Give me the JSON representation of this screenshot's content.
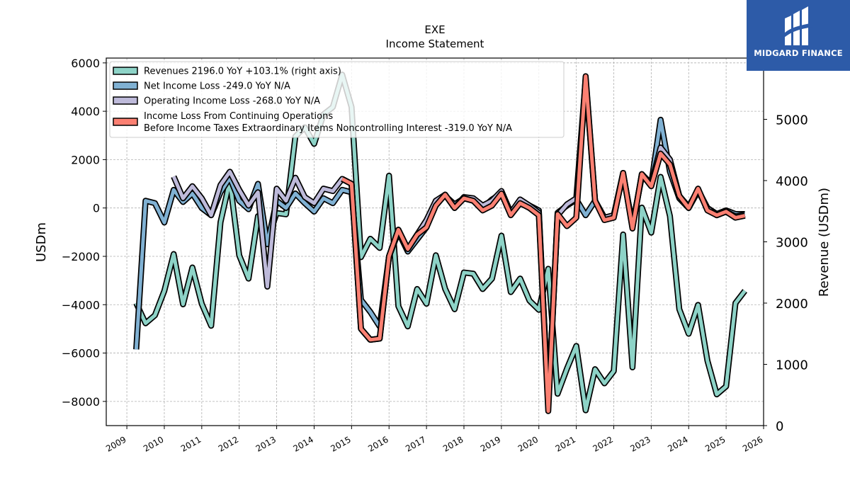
{
  "logo": {
    "text": "MIDGARD FINANCE",
    "mark": "midgard-logo-icon"
  },
  "chart_data": {
    "type": "line",
    "title": "EXE",
    "subtitle": "Income Statement",
    "ylabel": "USDm",
    "ylabel_right": "Revenue (USDm)",
    "ylim": [
      -9000,
      6200
    ],
    "ylim_right": [
      0,
      6000
    ],
    "yticks": [
      -8000,
      -6000,
      -4000,
      -2000,
      0,
      2000,
      4000,
      6000
    ],
    "yticks_right": [
      0,
      1000,
      2000,
      3000,
      4000,
      5000
    ],
    "xlim": [
      2008.45,
      2026.0
    ],
    "xticks": [
      2009,
      2010,
      2011,
      2012,
      2013,
      2014,
      2015,
      2016,
      2017,
      2018,
      2019,
      2020,
      2021,
      2022,
      2023,
      2024,
      2025,
      2026
    ],
    "grid": true,
    "legend_position": "top-left",
    "series": [
      {
        "name": "Revenues  2196.0 YoY +103.1% (right axis)",
        "axis": "right",
        "color": "#8dd3c7",
        "points": [
          [
            2009.25,
            2000
          ],
          [
            2009.5,
            1670
          ],
          [
            2009.75,
            1800
          ],
          [
            2010.0,
            2200
          ],
          [
            2010.25,
            2800
          ],
          [
            2010.5,
            1980
          ],
          [
            2010.75,
            2580
          ],
          [
            2011.0,
            1990
          ],
          [
            2011.25,
            1630
          ],
          [
            2011.5,
            3320
          ],
          [
            2011.75,
            4000
          ],
          [
            2012.0,
            2780
          ],
          [
            2012.25,
            2400
          ],
          [
            2012.5,
            3420
          ],
          [
            2012.75,
            3020
          ],
          [
            2013.0,
            3470
          ],
          [
            2013.25,
            3450
          ],
          [
            2013.5,
            4720
          ],
          [
            2013.75,
            4870
          ],
          [
            2014.0,
            4600
          ],
          [
            2014.25,
            5080
          ],
          [
            2014.5,
            5200
          ],
          [
            2014.75,
            5730
          ],
          [
            2015.0,
            5200
          ],
          [
            2015.25,
            2750
          ],
          [
            2015.5,
            3050
          ],
          [
            2015.75,
            2900
          ],
          [
            2016.0,
            4080
          ],
          [
            2016.25,
            1950
          ],
          [
            2016.5,
            1620
          ],
          [
            2016.75,
            2230
          ],
          [
            2017.0,
            1990
          ],
          [
            2017.25,
            2780
          ],
          [
            2017.5,
            2230
          ],
          [
            2017.75,
            1900
          ],
          [
            2018.0,
            2500
          ],
          [
            2018.25,
            2480
          ],
          [
            2018.5,
            2230
          ],
          [
            2018.75,
            2400
          ],
          [
            2019.0,
            3100
          ],
          [
            2019.25,
            2180
          ],
          [
            2019.5,
            2400
          ],
          [
            2019.75,
            2040
          ],
          [
            2020.0,
            1890
          ],
          [
            2020.25,
            2560
          ],
          [
            2020.5,
            520
          ],
          [
            2020.75,
            930
          ],
          [
            2021.0,
            1300
          ],
          [
            2021.25,
            250
          ],
          [
            2021.5,
            920
          ],
          [
            2021.75,
            690
          ],
          [
            2022.0,
            890
          ],
          [
            2022.25,
            3120
          ],
          [
            2022.5,
            950
          ],
          [
            2022.75,
            3560
          ],
          [
            2023.0,
            3150
          ],
          [
            2023.25,
            4060
          ],
          [
            2023.5,
            3420
          ],
          [
            2023.75,
            1900
          ],
          [
            2024.0,
            1500
          ],
          [
            2024.25,
            1970
          ],
          [
            2024.5,
            1060
          ],
          [
            2024.75,
            510
          ],
          [
            2025.0,
            640
          ],
          [
            2025.25,
            2000
          ],
          [
            2025.5,
            2200
          ]
        ]
      },
      {
        "name": "Net Income Loss  -249.0 YoY N/A",
        "axis": "left",
        "color": "#80b1d3",
        "points": [
          [
            2009.25,
            -5850
          ],
          [
            2009.5,
            300
          ],
          [
            2009.75,
            200
          ],
          [
            2010.0,
            -600
          ],
          [
            2010.25,
            750
          ],
          [
            2010.5,
            250
          ],
          [
            2010.75,
            600
          ],
          [
            2011.0,
            0
          ],
          [
            2011.25,
            -300
          ],
          [
            2011.5,
            650
          ],
          [
            2011.75,
            1250
          ],
          [
            2012.0,
            300
          ],
          [
            2012.25,
            -50
          ],
          [
            2012.5,
            1000
          ],
          [
            2012.75,
            -1500
          ],
          [
            2013.0,
            300
          ],
          [
            2013.25,
            0
          ],
          [
            2013.5,
            600
          ],
          [
            2013.75,
            200
          ],
          [
            2014.0,
            -150
          ],
          [
            2014.25,
            400
          ],
          [
            2014.5,
            200
          ],
          [
            2014.75,
            750
          ],
          [
            2015.0,
            650
          ],
          [
            2015.25,
            -3800
          ],
          [
            2015.5,
            -4300
          ],
          [
            2015.75,
            -4900
          ],
          [
            2016.0,
            -2000
          ],
          [
            2016.25,
            -1000
          ],
          [
            2016.5,
            -1800
          ],
          [
            2016.75,
            -1300
          ],
          [
            2017.0,
            -800
          ],
          [
            2017.25,
            300
          ],
          [
            2017.5,
            500
          ],
          [
            2017.75,
            150
          ],
          [
            2018.0,
            400
          ],
          [
            2018.25,
            300
          ],
          [
            2018.5,
            0
          ],
          [
            2018.75,
            350
          ],
          [
            2019.0,
            600
          ],
          [
            2019.25,
            -200
          ],
          [
            2019.5,
            300
          ],
          [
            2019.75,
            100
          ],
          [
            2020.0,
            -100
          ],
          [
            2020.25,
            -8200
          ],
          [
            2020.5,
            -200
          ],
          [
            2020.75,
            100
          ],
          [
            2021.0,
            350
          ],
          [
            2021.25,
            -300
          ],
          [
            2021.5,
            300
          ],
          [
            2021.75,
            -400
          ],
          [
            2022.0,
            -350
          ],
          [
            2022.25,
            1400
          ],
          [
            2022.5,
            -700
          ],
          [
            2022.75,
            1300
          ],
          [
            2023.0,
            1000
          ],
          [
            2023.25,
            3650
          ],
          [
            2023.5,
            1500
          ],
          [
            2023.75,
            400
          ],
          [
            2024.0,
            0
          ],
          [
            2024.25,
            700
          ],
          [
            2024.5,
            0
          ],
          [
            2024.75,
            -250
          ],
          [
            2025.0,
            -100
          ],
          [
            2025.25,
            -250
          ],
          [
            2025.5,
            -249
          ]
        ]
      },
      {
        "name": "Operating Income Loss  -268.0 YoY N/A",
        "axis": "left",
        "color": "#bebada",
        "points": [
          [
            2010.25,
            1300
          ],
          [
            2010.5,
            400
          ],
          [
            2010.75,
            900
          ],
          [
            2011.0,
            400
          ],
          [
            2011.25,
            -300
          ],
          [
            2011.5,
            950
          ],
          [
            2011.75,
            1500
          ],
          [
            2012.0,
            750
          ],
          [
            2012.25,
            100
          ],
          [
            2012.5,
            650
          ],
          [
            2012.75,
            -3250
          ],
          [
            2013.0,
            800
          ],
          [
            2013.25,
            300
          ],
          [
            2013.5,
            1250
          ],
          [
            2013.75,
            450
          ],
          [
            2014.0,
            200
          ],
          [
            2014.25,
            800
          ],
          [
            2014.5,
            700
          ],
          [
            2014.75,
            1200
          ],
          [
            2015.0,
            1000
          ],
          [
            2015.25,
            -5000
          ],
          [
            2015.5,
            -5450
          ],
          [
            2015.75,
            -5400
          ],
          [
            2016.0,
            -2000
          ],
          [
            2016.25,
            -900
          ],
          [
            2016.5,
            -1700
          ],
          [
            2016.75,
            -1100
          ],
          [
            2017.0,
            -500
          ],
          [
            2017.25,
            300
          ],
          [
            2017.5,
            550
          ],
          [
            2017.75,
            0
          ],
          [
            2018.0,
            450
          ],
          [
            2018.25,
            400
          ],
          [
            2018.5,
            100
          ],
          [
            2018.75,
            300
          ],
          [
            2019.0,
            700
          ],
          [
            2019.25,
            -200
          ],
          [
            2019.5,
            350
          ],
          [
            2019.75,
            100
          ],
          [
            2020.0,
            -200
          ],
          [
            2020.25,
            -8200
          ],
          [
            2020.5,
            -300
          ],
          [
            2020.75,
            150
          ],
          [
            2021.0,
            400
          ],
          [
            2021.25,
            5350
          ],
          [
            2021.5,
            300
          ],
          [
            2021.75,
            -400
          ],
          [
            2022.0,
            -300
          ],
          [
            2022.25,
            1450
          ],
          [
            2022.5,
            -800
          ],
          [
            2022.75,
            1400
          ],
          [
            2023.0,
            1000
          ],
          [
            2023.25,
            2500
          ],
          [
            2023.5,
            2000
          ],
          [
            2023.75,
            500
          ],
          [
            2024.0,
            50
          ],
          [
            2024.25,
            750
          ],
          [
            2024.5,
            0
          ],
          [
            2024.75,
            -300
          ],
          [
            2025.0,
            -150
          ],
          [
            2025.25,
            -350
          ],
          [
            2025.5,
            -268
          ]
        ]
      },
      {
        "name": "Income Loss From Continuing Operations Before Income Taxes Extraordinary Items Noncontrolling Interest  -319.0 YoY N/A",
        "name_line1": "Income Loss From Continuing Operations",
        "name_line2": "Before Income Taxes Extraordinary Items Noncontrolling Interest  -319.0 YoY N/A",
        "axis": "left",
        "color": "#fb8072",
        "points": [
          [
            2014.75,
            1200
          ],
          [
            2015.0,
            1000
          ],
          [
            2015.25,
            -5000
          ],
          [
            2015.5,
            -5450
          ],
          [
            2015.75,
            -5400
          ],
          [
            2016.0,
            -2000
          ],
          [
            2016.25,
            -900
          ],
          [
            2016.5,
            -1700
          ],
          [
            2016.75,
            -1100
          ],
          [
            2017.0,
            -800
          ],
          [
            2017.25,
            100
          ],
          [
            2017.5,
            550
          ],
          [
            2017.75,
            0
          ],
          [
            2018.0,
            400
          ],
          [
            2018.25,
            300
          ],
          [
            2018.5,
            -100
          ],
          [
            2018.75,
            100
          ],
          [
            2019.0,
            600
          ],
          [
            2019.25,
            -300
          ],
          [
            2019.5,
            200
          ],
          [
            2019.75,
            0
          ],
          [
            2020.0,
            -300
          ],
          [
            2020.25,
            -8400
          ],
          [
            2020.5,
            -250
          ],
          [
            2020.75,
            -750
          ],
          [
            2021.0,
            -400
          ],
          [
            2021.25,
            5450
          ],
          [
            2021.5,
            300
          ],
          [
            2021.75,
            -500
          ],
          [
            2022.0,
            -400
          ],
          [
            2022.25,
            1450
          ],
          [
            2022.5,
            -850
          ],
          [
            2022.75,
            1400
          ],
          [
            2023.0,
            900
          ],
          [
            2023.25,
            2250
          ],
          [
            2023.5,
            1800
          ],
          [
            2023.75,
            500
          ],
          [
            2024.0,
            0
          ],
          [
            2024.25,
            800
          ],
          [
            2024.5,
            -100
          ],
          [
            2024.75,
            -300
          ],
          [
            2025.0,
            -150
          ],
          [
            2025.25,
            -400
          ],
          [
            2025.5,
            -319
          ]
        ]
      }
    ]
  }
}
